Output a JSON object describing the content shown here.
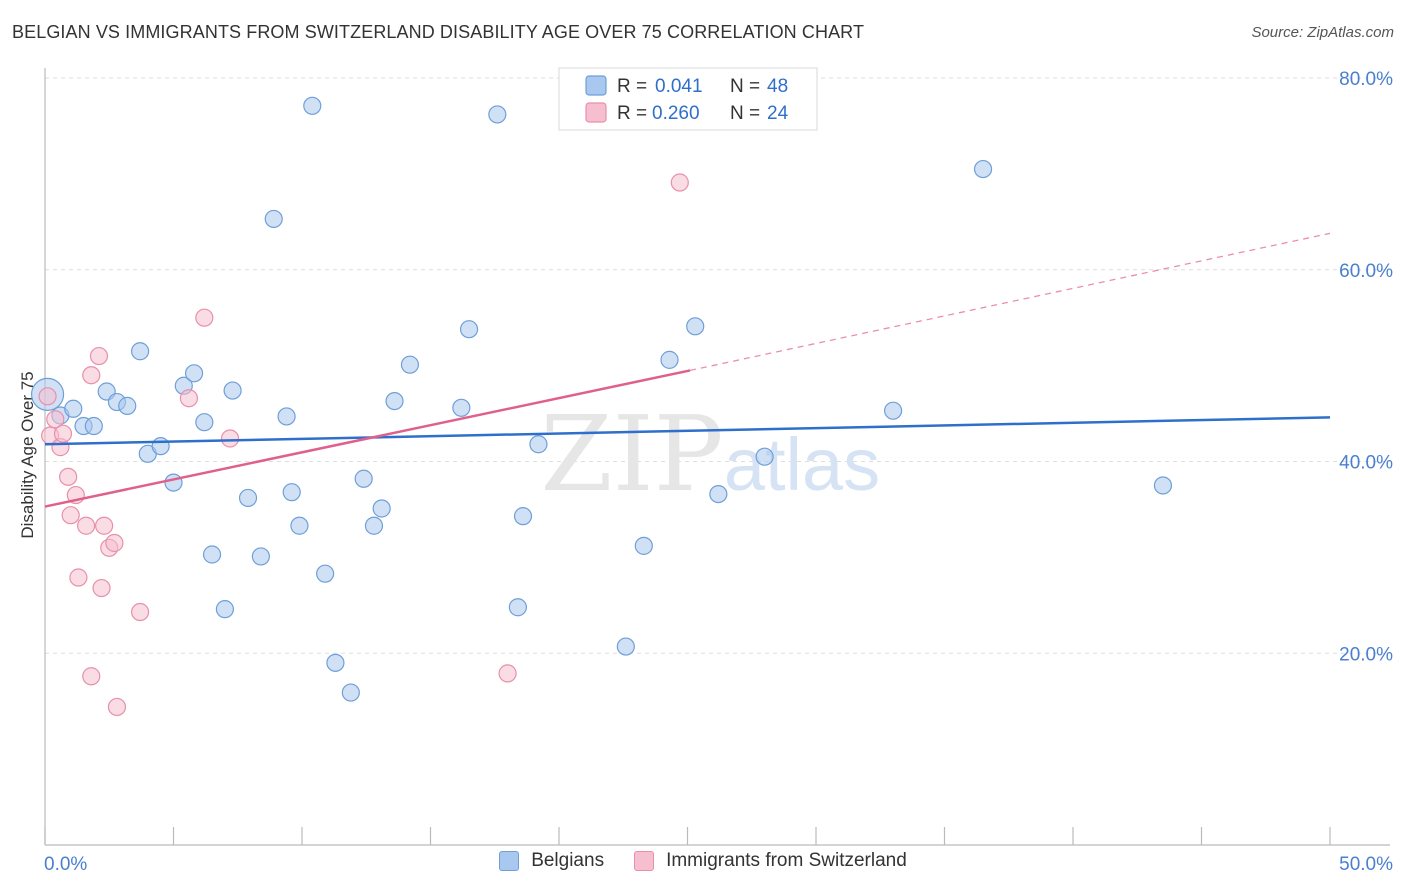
{
  "title": "BELGIAN VS IMMIGRANTS FROM SWITZERLAND DISABILITY AGE OVER 75 CORRELATION CHART",
  "source": "Source: ZipAtlas.com",
  "watermark": {
    "zip": "ZIP",
    "atlas": "atlas"
  },
  "colors": {
    "blue_fill": "#a9c8ef",
    "blue_stroke": "#6f9fd8",
    "blue_line": "#2f6fcc",
    "pink_fill": "#f6bfd0",
    "pink_stroke": "#e98fab",
    "pink_line": "#e0608c",
    "axis_label": "#4a7fd0",
    "grid": "#dddddd"
  },
  "stats_legend": {
    "rows": [
      {
        "r_label": "R = ",
        "r_value": "0.041",
        "n_label": "N = ",
        "n_value": "48",
        "color": "blue"
      },
      {
        "r_label": "R = ",
        "r_value": "0.260",
        "n_label": "N = ",
        "n_value": "24",
        "color": "pink"
      }
    ]
  },
  "legend": {
    "belgians": "Belgians",
    "swiss": "Immigrants from Switzerland"
  },
  "chart_data": {
    "type": "scatter",
    "title": "BELGIAN VS IMMIGRANTS FROM SWITZERLAND DISABILITY AGE OVER 75 CORRELATION CHART",
    "xlabel": "",
    "ylabel": "Disability Age Over 75",
    "xlim": [
      0,
      50
    ],
    "ylim": [
      0,
      80
    ],
    "x_tick_labels": [
      {
        "value": 0,
        "label": "0.0%"
      },
      {
        "value": 50,
        "label": "50.0%"
      }
    ],
    "y_tick_labels": [
      {
        "value": 80,
        "label": "80.0%"
      },
      {
        "value": 60,
        "label": "60.0%"
      },
      {
        "value": 40,
        "label": "40.0%"
      },
      {
        "value": 20,
        "label": "20.0%"
      }
    ],
    "x_minor_ticks": [
      0,
      5,
      10,
      15,
      20,
      25,
      30,
      35,
      40,
      45,
      50
    ],
    "series": [
      {
        "name": "Belgians",
        "color": "blue",
        "trend": {
          "x0": 0,
          "y0": 41.8,
          "x1": 50,
          "y1": 44.6
        },
        "points": [
          [
            0.1,
            47.0
          ],
          [
            0.6,
            44.8
          ],
          [
            1.1,
            45.5
          ],
          [
            1.5,
            43.7
          ],
          [
            1.9,
            43.7
          ],
          [
            2.4,
            47.3
          ],
          [
            2.8,
            46.2
          ],
          [
            3.2,
            45.8
          ],
          [
            3.7,
            51.5
          ],
          [
            4.0,
            40.8
          ],
          [
            4.5,
            41.6
          ],
          [
            5.0,
            37.8
          ],
          [
            5.4,
            47.9
          ],
          [
            5.8,
            49.2
          ],
          [
            6.2,
            44.1
          ],
          [
            6.5,
            30.3
          ],
          [
            7.0,
            24.6
          ],
          [
            7.3,
            47.4
          ],
          [
            7.9,
            36.2
          ],
          [
            8.4,
            30.1
          ],
          [
            8.9,
            65.3
          ],
          [
            9.4,
            44.7
          ],
          [
            9.6,
            36.8
          ],
          [
            9.9,
            33.3
          ],
          [
            10.4,
            77.1
          ],
          [
            10.9,
            28.3
          ],
          [
            11.3,
            19.0
          ],
          [
            11.9,
            15.9
          ],
          [
            12.4,
            38.2
          ],
          [
            12.8,
            33.3
          ],
          [
            13.1,
            35.1
          ],
          [
            13.6,
            46.3
          ],
          [
            14.2,
            50.1
          ],
          [
            16.2,
            45.6
          ],
          [
            16.5,
            53.8
          ],
          [
            17.6,
            76.2
          ],
          [
            18.4,
            24.8
          ],
          [
            18.6,
            34.3
          ],
          [
            19.2,
            41.8
          ],
          [
            22.6,
            20.7
          ],
          [
            23.3,
            31.2
          ],
          [
            24.3,
            50.6
          ],
          [
            25.3,
            54.1
          ],
          [
            26.2,
            36.6
          ],
          [
            28.0,
            40.5
          ],
          [
            33.0,
            45.3
          ],
          [
            36.5,
            70.5
          ],
          [
            43.5,
            37.5
          ]
        ]
      },
      {
        "name": "Immigrants from Switzerland",
        "color": "pink",
        "trend": {
          "x0": 0,
          "y0": 35.3,
          "x1": 25.1,
          "y1": 49.5,
          "x_dash_end": 50,
          "y_dash_end": 63.8
        },
        "points": [
          [
            0.1,
            46.8
          ],
          [
            0.2,
            42.7
          ],
          [
            0.4,
            44.4
          ],
          [
            0.6,
            41.5
          ],
          [
            0.7,
            42.9
          ],
          [
            0.9,
            38.4
          ],
          [
            1.0,
            34.4
          ],
          [
            1.2,
            36.5
          ],
          [
            1.3,
            27.9
          ],
          [
            1.6,
            33.3
          ],
          [
            1.8,
            49.0
          ],
          [
            1.8,
            17.6
          ],
          [
            2.1,
            51.0
          ],
          [
            2.2,
            26.8
          ],
          [
            2.3,
            33.3
          ],
          [
            2.5,
            31.0
          ],
          [
            2.7,
            31.5
          ],
          [
            2.8,
            14.4
          ],
          [
            3.7,
            24.3
          ],
          [
            5.6,
            46.6
          ],
          [
            6.2,
            55.0
          ],
          [
            7.2,
            42.4
          ],
          [
            18.0,
            17.9
          ],
          [
            24.7,
            69.1
          ]
        ]
      }
    ]
  }
}
